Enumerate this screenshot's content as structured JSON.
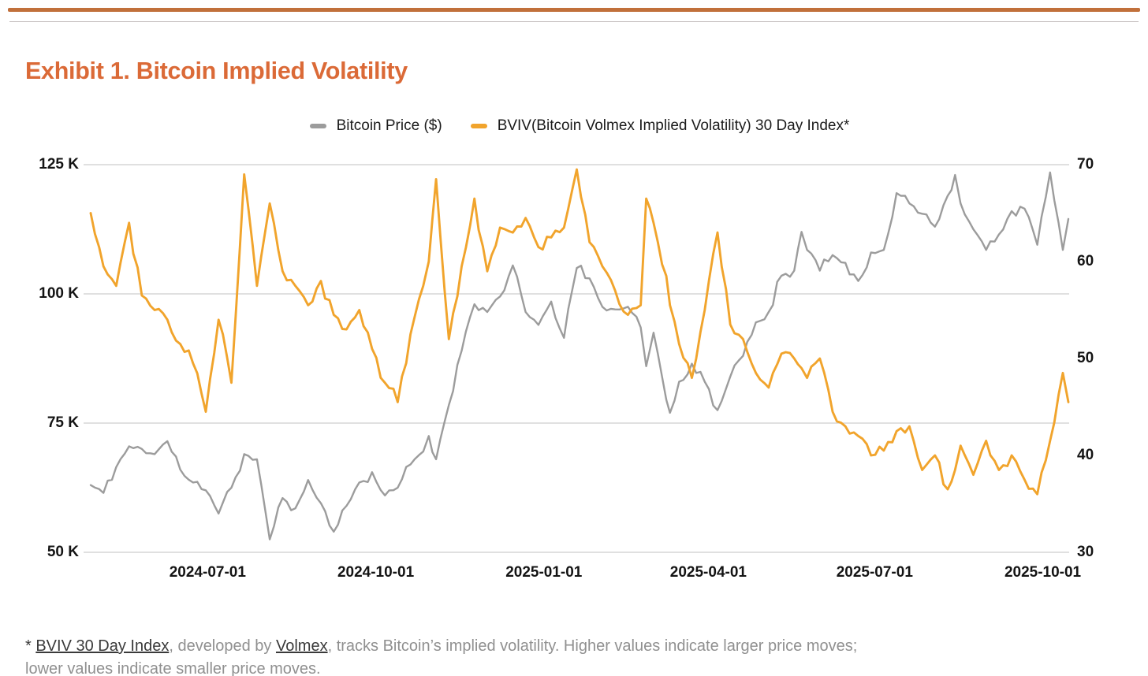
{
  "window": {
    "title": "Exhibit 1. Bitcoin Implied Volatility"
  },
  "theme": {
    "accent_bar_color": "#C1703B",
    "title_color": "#DB6A37",
    "gridline_color": "#CDCDCD",
    "tick_text_color": "#141414",
    "footnote_gray": "#909090",
    "footnote_dark": "#3A3A3A"
  },
  "legend": {
    "items": [
      {
        "label": "Bitcoin Price ($)",
        "color": "#9C9C9C"
      },
      {
        "label": "BVIV(Bitcoin Volmex Implied Volatility) 30 Day Index*",
        "color": "#F1A42C"
      }
    ]
  },
  "footnote": {
    "star": "* ",
    "link_bviv": "BVIV 30 Day Index",
    "mid": ", developed by ",
    "link_volmex": "Volmex",
    "tail_line1": ", tracks Bitcoin’s implied volatility. Higher values indicate larger price moves;",
    "line2": "lower values indicate smaller price moves."
  },
  "chart_data": {
    "type": "line",
    "title": "Exhibit 1. Bitcoin Implied Volatility",
    "grid": "horizontal gridlines at left-axis ticks only",
    "legend_position": "top-center",
    "x_tick_labels": [
      "2024-07-01",
      "2024-10-01",
      "2025-01-01",
      "2025-04-01",
      "2025-07-01",
      "2025-10-01"
    ],
    "left_axis": {
      "series": "Bitcoin Price ($)",
      "units": "USD thousands",
      "tick_labels": [
        "125 K",
        "100 K",
        "75 K",
        "50 K"
      ],
      "tick_values": [
        125,
        100,
        75,
        50
      ],
      "range": [
        50,
        125
      ]
    },
    "right_axis": {
      "series": "BVIV 30 Day Index",
      "tick_labels": [
        "70",
        "60",
        "50",
        "40",
        "30"
      ],
      "tick_values": [
        70,
        60,
        50,
        40,
        30
      ],
      "range": [
        30,
        70
      ]
    },
    "x": [
      "2024-04-28",
      "2024-05-05",
      "2024-05-12",
      "2024-05-19",
      "2024-05-26",
      "2024-06-02",
      "2024-06-09",
      "2024-06-16",
      "2024-06-23",
      "2024-06-30",
      "2024-07-07",
      "2024-07-14",
      "2024-07-21",
      "2024-07-28",
      "2024-08-04",
      "2024-08-11",
      "2024-08-18",
      "2024-08-25",
      "2024-09-01",
      "2024-09-08",
      "2024-09-15",
      "2024-09-22",
      "2024-09-29",
      "2024-10-06",
      "2024-10-13",
      "2024-10-20",
      "2024-10-27",
      "2024-10-30",
      "2024-11-03",
      "2024-11-10",
      "2024-11-17",
      "2024-11-24",
      "2024-12-01",
      "2024-12-08",
      "2024-12-15",
      "2024-12-22",
      "2024-12-29",
      "2025-01-05",
      "2025-01-12",
      "2025-01-19",
      "2025-01-26",
      "2025-02-02",
      "2025-02-09",
      "2025-02-16",
      "2025-02-23",
      "2025-02-26",
      "2025-03-02",
      "2025-03-09",
      "2025-03-11",
      "2025-03-16",
      "2025-03-23",
      "2025-03-30",
      "2025-04-06",
      "2025-04-13",
      "2025-04-20",
      "2025-04-27",
      "2025-05-04",
      "2025-05-11",
      "2025-05-18",
      "2025-05-22",
      "2025-05-25",
      "2025-06-01",
      "2025-06-08",
      "2025-06-15",
      "2025-06-22",
      "2025-06-29",
      "2025-07-06",
      "2025-07-13",
      "2025-07-20",
      "2025-07-27",
      "2025-08-03",
      "2025-08-10",
      "2025-08-14",
      "2025-08-17",
      "2025-08-24",
      "2025-08-31",
      "2025-09-07",
      "2025-09-14",
      "2025-09-21",
      "2025-09-28",
      "2025-10-05",
      "2025-10-12",
      "2025-10-15"
    ],
    "series": [
      {
        "name": "Bitcoin Price ($)",
        "axis": "left",
        "color": "#9C9C9C",
        "units": "USD thousands",
        "values": [
          63,
          61.5,
          66.5,
          70.5,
          70,
          69,
          71.5,
          66,
          63.5,
          62,
          57.5,
          62.5,
          69,
          68,
          52.5,
          60.5,
          58.5,
          64,
          59.5,
          54,
          59,
          63.5,
          65.5,
          61,
          62.5,
          67,
          69.5,
          72.5,
          68,
          78.5,
          89,
          98,
          96.5,
          99.5,
          105.5,
          96.5,
          94,
          98.5,
          91.5,
          105,
          103,
          97.5,
          97,
          97.5,
          93.5,
          86,
          92.5,
          79.5,
          77,
          83,
          86.5,
          83,
          77.5,
          84,
          88,
          94.5,
          96.5,
          103.5,
          104.5,
          112,
          108.5,
          104.5,
          107.5,
          106,
          102.5,
          108,
          108.5,
          119.5,
          117.5,
          115.5,
          113,
          119,
          123,
          117.5,
          112.5,
          108.5,
          111.5,
          116,
          116.5,
          109.5,
          123.5,
          108.5,
          114.5
        ]
      },
      {
        "name": "BVIV(Bitcoin Volmex Implied Volatility) 30 Day Index*",
        "axis": "right",
        "color": "#F1A42C",
        "units": "index points",
        "values": [
          65,
          59.5,
          57.5,
          64,
          56.5,
          55,
          54,
          51.5,
          49.5,
          44.5,
          54,
          47.5,
          69,
          57.5,
          66,
          59,
          57.5,
          55.5,
          58,
          54.5,
          53,
          55,
          51,
          47.5,
          45.5,
          52.5,
          57.5,
          60,
          68.5,
          52,
          59.5,
          66.5,
          59,
          63.5,
          63,
          64.5,
          61.5,
          62.5,
          63.5,
          69.5,
          62,
          59.5,
          57,
          54.5,
          55.5,
          66.5,
          64,
          58.5,
          55.5,
          51.5,
          48,
          55,
          63,
          53.5,
          52,
          48.5,
          47,
          50.5,
          50,
          49,
          48,
          50,
          44.5,
          43,
          42,
          40,
          40.5,
          42.5,
          43,
          38.5,
          40,
          36.5,
          38.5,
          41,
          38,
          41.5,
          38.5,
          40,
          37.5,
          36,
          41.5,
          48.5,
          45.5
        ]
      }
    ]
  }
}
